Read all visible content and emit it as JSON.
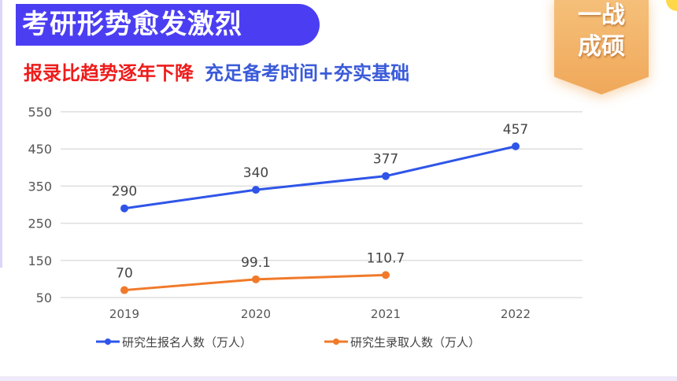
{
  "header": {
    "title": "考研形势愈发激烈",
    "subtitle_red": "报录比趋势逐年下降",
    "subtitle_blue": "充足备考时间+夯实基础",
    "badge_line1": "一战",
    "badge_line2": "成硕"
  },
  "colors": {
    "title_bg": "#4b3ef2",
    "subtitle_red": "#ee1c1c",
    "subtitle_blue": "#3a5bd9",
    "series_applicants": "#2f55e8",
    "series_admitted": "#f07a2a",
    "badge": "#f0a85a"
  },
  "chart_data": {
    "type": "line",
    "title": "考研形势愈发激烈",
    "subtitle": "报录比趋势逐年下降 充足备考时间+夯实基础",
    "categories": [
      "2019",
      "2020",
      "2021",
      "2022"
    ],
    "series": [
      {
        "name": "研究生报名人数（万人）",
        "values": [
          290,
          340,
          377,
          457
        ],
        "color": "#2f55e8"
      },
      {
        "name": "研究生录取人数（万人）",
        "values": [
          70,
          99.1,
          110.7,
          null
        ],
        "color": "#f07a2a"
      }
    ],
    "data_labels": {
      "applicants": [
        "290",
        "340",
        "377",
        "457"
      ],
      "admitted": [
        "70",
        "99.1",
        "110.7"
      ]
    },
    "yticks": [
      "550",
      "450",
      "350",
      "250",
      "150",
      "50"
    ],
    "xlabel": "",
    "ylabel": "",
    "ylim": [
      50,
      550
    ],
    "grid": true,
    "legend_position": "bottom"
  },
  "legend": {
    "item1": "研究生报名人数（万人）",
    "item2": "研究生录取人数（万人）"
  }
}
